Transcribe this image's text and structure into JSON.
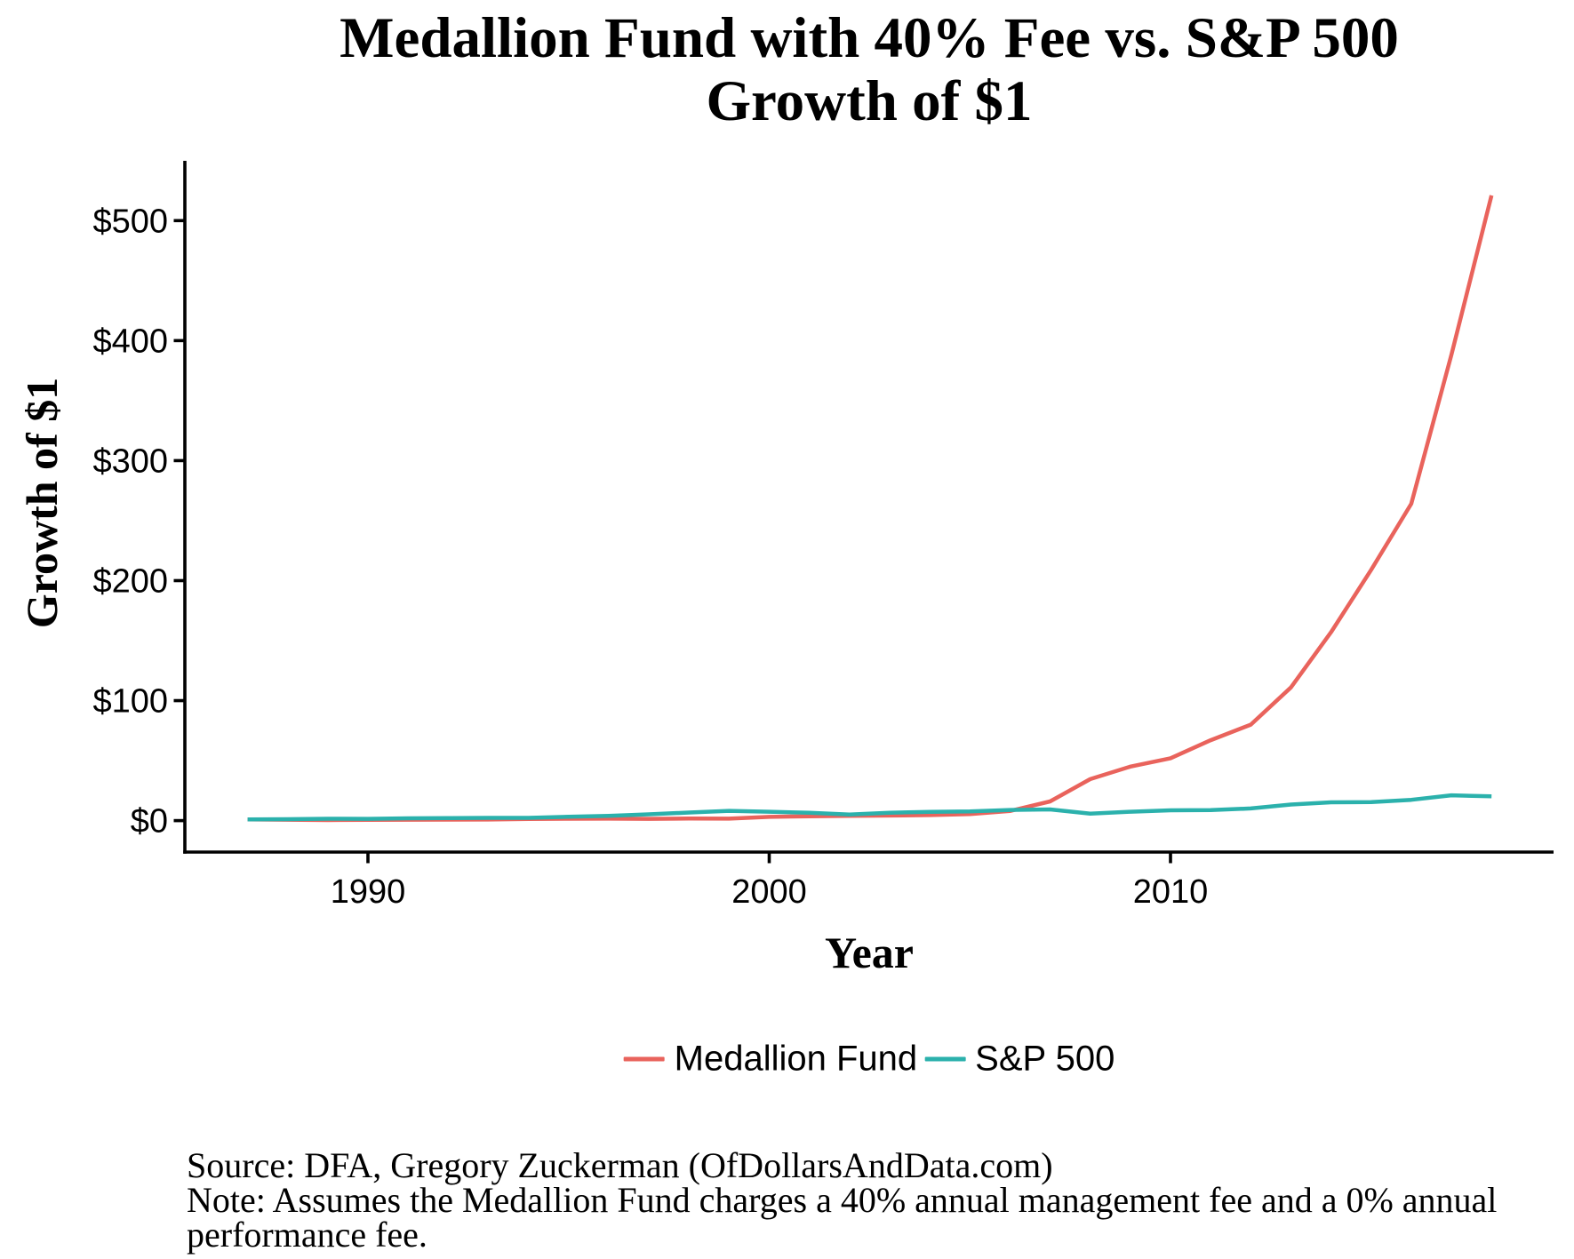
{
  "title": {
    "line1": "Medallion Fund with 40% Fee vs. S&P 500",
    "line2": "Growth of $1"
  },
  "axes": {
    "y_label": "Growth of $1",
    "x_label": "Year",
    "y_tick_labels": [
      "$0",
      "$100",
      "$200",
      "$300",
      "$400",
      "$500"
    ],
    "y_tick_values": [
      0,
      100,
      200,
      300,
      400,
      500
    ],
    "x_tick_labels": [
      "1990",
      "2000",
      "2010"
    ],
    "x_tick_values": [
      1990,
      2000,
      2010
    ]
  },
  "legend": [
    {
      "label": "Medallion Fund",
      "color": "#E9635C"
    },
    {
      "label": "S&P 500",
      "color": "#2BB1AC"
    }
  ],
  "footer": {
    "source": "Source: DFA, Gregory Zuckerman (OfDollarsAndData.com)",
    "note1": "Note: Assumes the Medallion Fund charges a 40% annual management fee and a 0% annual",
    "note2": "performance fee."
  },
  "chart_data": {
    "type": "line",
    "title": "Medallion Fund with 40% Fee vs. S&P 500 — Growth of $1",
    "xlabel": "Year",
    "ylabel": "Growth of $1",
    "grid": false,
    "legend_position": "bottom",
    "xlim": [
      1985.4,
      2019.6
    ],
    "ylim": [
      -26,
      550
    ],
    "y_ticks": [
      0,
      100,
      200,
      300,
      400,
      500
    ],
    "x_ticks": [
      1990,
      2000,
      2010
    ],
    "x": [
      1987,
      1988,
      1989,
      1990,
      1991,
      1992,
      1993,
      1994,
      1995,
      1996,
      1997,
      1998,
      1999,
      2000,
      2001,
      2002,
      2003,
      2004,
      2005,
      2006,
      2007,
      2008,
      2009,
      2010,
      2011,
      2012,
      2013,
      2014,
      2015,
      2016,
      2017,
      2018
    ],
    "series": [
      {
        "name": "Medallion Fund",
        "color": "#E9635C",
        "values": [
          1.0,
          0.76,
          0.47,
          0.64,
          0.73,
          0.78,
          0.89,
          1.37,
          1.54,
          1.61,
          1.47,
          1.72,
          1.65,
          3.1,
          3.62,
          4.02,
          4.19,
          4.58,
          5.38,
          8.0,
          16.0,
          34.6,
          45,
          52,
          67,
          80,
          111,
          157,
          209,
          264,
          388,
          521
        ]
      },
      {
        "name": "S&P 500",
        "color": "#2BB1AC",
        "values": [
          1.0,
          1.17,
          1.54,
          1.49,
          1.94,
          2.09,
          2.3,
          2.33,
          3.21,
          3.94,
          5.26,
          6.76,
          8.18,
          7.44,
          6.55,
          5.1,
          6.57,
          7.28,
          7.64,
          8.85,
          9.33,
          5.88,
          7.44,
          8.56,
          8.74,
          10.14,
          13.42,
          15.26,
          15.47,
          17.33,
          21.11,
          20.18
        ]
      }
    ]
  }
}
